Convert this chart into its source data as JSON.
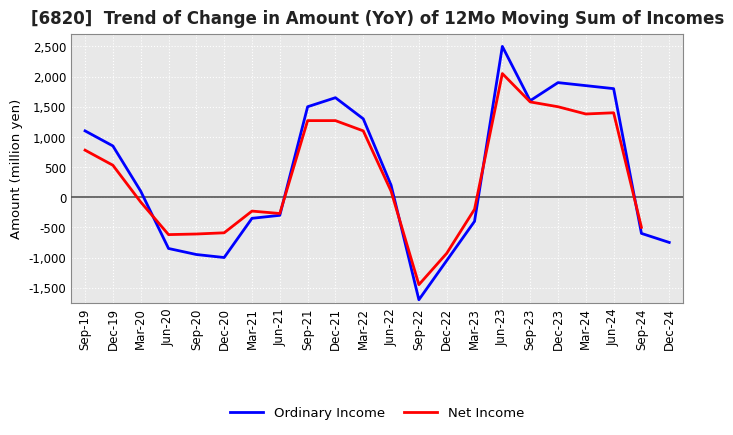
{
  "title": "[6820]  Trend of Change in Amount (YoY) of 12Mo Moving Sum of Incomes",
  "ylabel": "Amount (million yen)",
  "x_labels": [
    "Sep-19",
    "Dec-19",
    "Mar-20",
    "Jun-20",
    "Sep-20",
    "Dec-20",
    "Mar-21",
    "Jun-21",
    "Sep-21",
    "Dec-21",
    "Mar-22",
    "Jun-22",
    "Sep-22",
    "Dec-22",
    "Mar-23",
    "Jun-23",
    "Sep-23",
    "Dec-23",
    "Mar-24",
    "Jun-24",
    "Sep-24",
    "Dec-24"
  ],
  "ordinary_income": [
    1100,
    850,
    100,
    -850,
    -950,
    -1000,
    -350,
    -300,
    1500,
    1650,
    1300,
    200,
    -1700,
    -1050,
    -400,
    2500,
    1600,
    1900,
    1850,
    1800,
    -600,
    -750
  ],
  "net_income": [
    780,
    530,
    -80,
    -620,
    -610,
    -590,
    -230,
    -270,
    1270,
    1270,
    1100,
    100,
    -1450,
    -930,
    -200,
    2050,
    1580,
    1500,
    1380,
    1400,
    -500,
    null
  ],
  "ordinary_color": "#0000ff",
  "net_color": "#ff0000",
  "background_color": "#ffffff",
  "plot_bg_color": "#e8e8e8",
  "grid_color": "#ffffff",
  "zero_line_color": "#555555",
  "ylim": [
    -1750,
    2700
  ],
  "yticks": [
    -1500,
    -1000,
    -500,
    0,
    500,
    1000,
    1500,
    2000,
    2500
  ],
  "legend_labels": [
    "Ordinary Income",
    "Net Income"
  ],
  "title_fontsize": 12,
  "axis_fontsize": 9.5,
  "tick_fontsize": 8.5
}
